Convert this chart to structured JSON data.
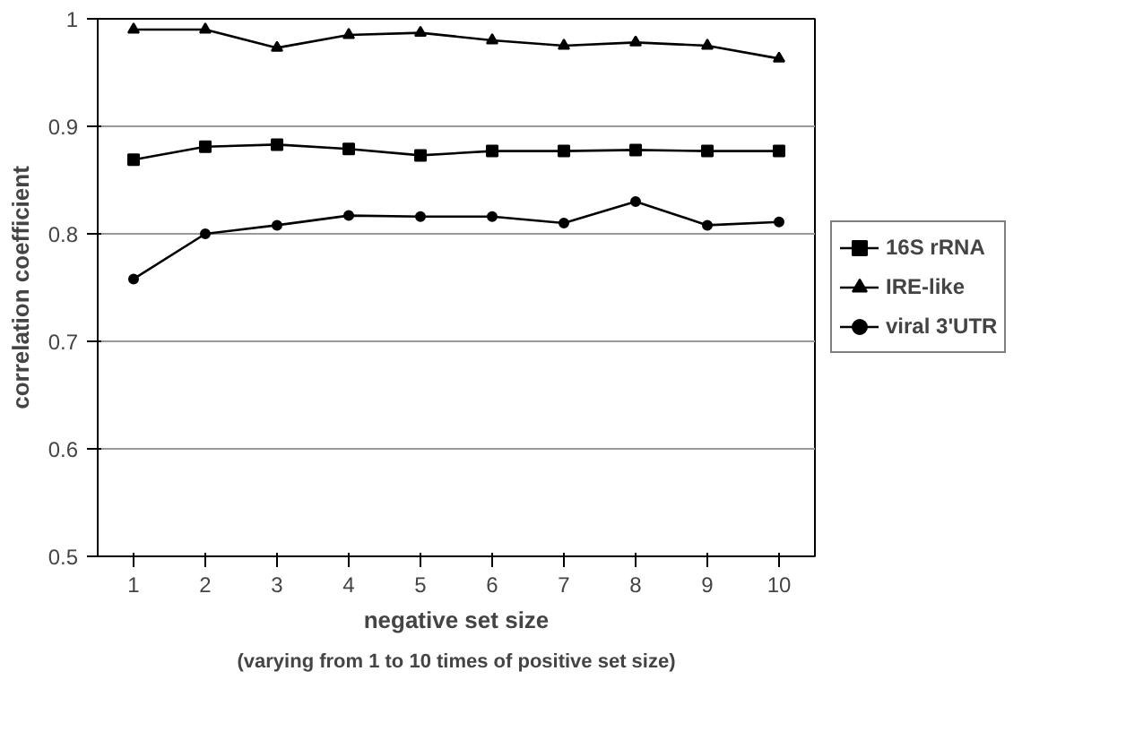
{
  "chart_data": {
    "type": "line",
    "xlabel": "negative set size",
    "ylabel": "correlation coefficient",
    "annotations": [
      "(varying from 1 to 10 times of positive set size)"
    ],
    "categories": [
      "1",
      "2",
      "3",
      "4",
      "5",
      "6",
      "7",
      "8",
      "9",
      "10"
    ],
    "series": [
      {
        "name": "16S rRNA",
        "color": "#000000",
        "marker": "square",
        "values": [
          0.869,
          0.881,
          0.883,
          0.879,
          0.873,
          0.877,
          0.877,
          0.878,
          0.877,
          0.877
        ]
      },
      {
        "name": "IRE-like",
        "color": "#000000",
        "marker": "triangle",
        "values": [
          0.99,
          0.99,
          0.973,
          0.985,
          0.987,
          0.98,
          0.975,
          0.978,
          0.975,
          0.963
        ]
      },
      {
        "name": "viral 3'UTR",
        "color": "#000000",
        "marker": "circle",
        "values": [
          0.758,
          0.8,
          0.808,
          0.817,
          0.816,
          0.816,
          0.81,
          0.83,
          0.808,
          0.811
        ]
      }
    ],
    "ylim": [
      0.5,
      1
    ],
    "yticks": [
      0.5,
      0.6,
      0.7,
      0.8,
      0.9,
      1
    ],
    "grid": "y",
    "legend": "right",
    "line_style": "solid"
  }
}
